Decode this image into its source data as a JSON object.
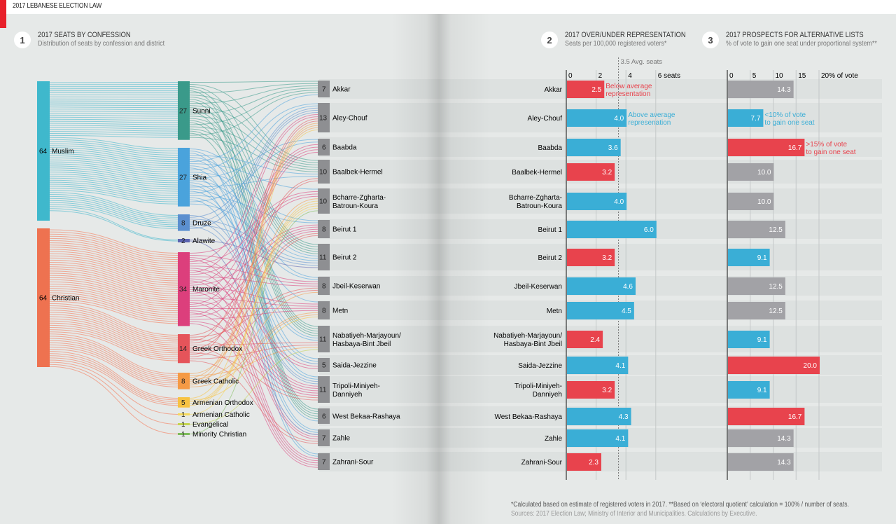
{
  "header": {
    "title": "2017 LEBANESE ELECTION LAW"
  },
  "sections": [
    {
      "num": "1",
      "title": "2017 SEATS BY CONFESSION",
      "subtitle": "Distribution of seats by confession and district"
    },
    {
      "num": "2",
      "title": "2017 OVER/UNDER REPRESENTATION",
      "subtitle": "Seats per 100,000 registered voters*"
    },
    {
      "num": "3",
      "title": "2017 PROSPECTS FOR ALTERNATIVE LISTS",
      "subtitle": "% of vote to gain one seat under proportional system**"
    }
  ],
  "colors": {
    "red": "#e8434d",
    "blue": "#3aaed6",
    "grey": "#a2a2a6",
    "band": "#dde1e0"
  },
  "chart_data": [
    {
      "type": "sankey",
      "title": "2017 SEATS BY CONFESSION",
      "religions": [
        {
          "name": "Muslim",
          "value": 64,
          "color": "#3fb8cc"
        },
        {
          "name": "Christian",
          "value": 64,
          "color": "#ee7250"
        }
      ],
      "confessions": [
        {
          "name": "Sunni",
          "value": 27,
          "color": "#3a9a8a",
          "group": "Muslim"
        },
        {
          "name": "Shia",
          "value": 27,
          "color": "#4aa3dc",
          "group": "Muslim"
        },
        {
          "name": "Druze",
          "value": 8,
          "color": "#5b8fcf",
          "group": "Muslim"
        },
        {
          "name": "Alawite",
          "value": 2,
          "color": "#5a63b0",
          "group": "Muslim"
        },
        {
          "name": "Maronite",
          "value": 34,
          "color": "#dc3f7c",
          "group": "Christian"
        },
        {
          "name": "Greek Orthodox",
          "value": 14,
          "color": "#e5545a",
          "group": "Christian"
        },
        {
          "name": "Greek Catholic",
          "value": 8,
          "color": "#f59a45",
          "group": "Christian"
        },
        {
          "name": "Armenian Orthodox",
          "value": 5,
          "color": "#f7c242",
          "group": "Christian"
        },
        {
          "name": "Armenian Catholic",
          "value": 1,
          "color": "#f5d95a",
          "group": "Christian"
        },
        {
          "name": "Evangelical",
          "value": 1,
          "color": "#c3d44e",
          "group": "Christian"
        },
        {
          "name": "Minority Christian",
          "value": 1,
          "color": "#7dbb5a",
          "group": "Christian"
        }
      ],
      "districts": [
        {
          "name": "Akkar",
          "lines": [
            "Akkar"
          ],
          "value": 7
        },
        {
          "name": "Aley-Chouf",
          "lines": [
            "Aley-Chouf"
          ],
          "value": 13
        },
        {
          "name": "Baabda",
          "lines": [
            "Baabda"
          ],
          "value": 6
        },
        {
          "name": "Baalbek-Hermel",
          "lines": [
            "Baalbek-Hermel"
          ],
          "value": 10
        },
        {
          "name": "Bcharre-Zgharta-Batroun-Koura",
          "lines": [
            "Bcharre-Zgharta-",
            "Batroun-Koura"
          ],
          "value": 10
        },
        {
          "name": "Beirut 1",
          "lines": [
            "Beirut 1"
          ],
          "value": 8
        },
        {
          "name": "Beirut 2",
          "lines": [
            "Beirut 2"
          ],
          "value": 11
        },
        {
          "name": "Jbeil-Keserwan",
          "lines": [
            "Jbeil-Keserwan"
          ],
          "value": 8
        },
        {
          "name": "Metn",
          "lines": [
            "Metn"
          ],
          "value": 8
        },
        {
          "name": "Nabatiyeh-Marjayoun/Hasbaya-Bint Jbeil",
          "lines": [
            "Nabatiyeh-Marjayoun/",
            "Hasbaya-Bint Jbeil"
          ],
          "value": 11
        },
        {
          "name": "Saida-Jezzine",
          "lines": [
            "Saida-Jezzine"
          ],
          "value": 5
        },
        {
          "name": "Tripoli-Miniyeh-Danniyeh",
          "lines": [
            "Tripoli-Miniyeh-",
            "Danniyeh"
          ],
          "value": 11
        },
        {
          "name": "West Bekaa-Rashaya",
          "lines": [
            "West Bekaa-Rashaya"
          ],
          "value": 6
        },
        {
          "name": "Zahle",
          "lines": [
            "Zahle"
          ],
          "value": 7
        },
        {
          "name": "Zahrani-Sour",
          "lines": [
            "Zahrani-Sour"
          ],
          "value": 7
        }
      ]
    },
    {
      "type": "bar",
      "orientation": "horizontal",
      "title": "2017 OVER/UNDER REPRESENTATION",
      "subtitle": "Seats per 100,000 registered voters*",
      "categories": [
        "Akkar",
        "Aley-Chouf",
        "Baabda",
        "Baalbek-Hermel",
        "Bcharre-Zgharta-Batroun-Koura",
        "Beirut 1",
        "Beirut 2",
        "Jbeil-Keserwan",
        "Metn",
        "Nabatiyeh-Marjayoun/Hasbaya-Bint Jbeil",
        "Saida-Jezzine",
        "Tripoli-Miniyeh-Danniyeh",
        "West Bekaa-Rashaya",
        "Zahle",
        "Zahrani-Sour"
      ],
      "category_lines": [
        [
          "Akkar"
        ],
        [
          "Aley-Chouf"
        ],
        [
          "Baabda"
        ],
        [
          "Baalbek-Hermel"
        ],
        [
          "Bcharre-Zgharta-",
          "Batroun-Koura"
        ],
        [
          "Beirut 1"
        ],
        [
          "Beirut 2"
        ],
        [
          "Jbeil-Keserwan"
        ],
        [
          "Metn"
        ],
        [
          "Nabatiyeh-Marjayoun/",
          "Hasbaya-Bint Jbeil"
        ],
        [
          "Saida-Jezzine"
        ],
        [
          "Tripoli-Miniyeh-",
          "Danniyeh"
        ],
        [
          "West Bekaa-Rashaya"
        ],
        [
          "Zahle"
        ],
        [
          "Zahrani-Sour"
        ]
      ],
      "values": [
        2.5,
        4.0,
        3.6,
        3.2,
        4.0,
        6.0,
        3.2,
        4.6,
        4.5,
        2.4,
        4.1,
        3.2,
        4.3,
        4.1,
        2.3
      ],
      "value_labels": [
        "2.5",
        "4.0",
        "3.6",
        "3.2",
        "4.0",
        "6.0",
        "3.2",
        "4.6",
        "4.5",
        "2.4",
        "4.1",
        "3.2",
        "4.3",
        "4.1",
        "2.3"
      ],
      "status": [
        "below",
        "above",
        "above",
        "below",
        "above",
        "above",
        "below",
        "above",
        "above",
        "below",
        "above",
        "below",
        "above",
        "above",
        "below"
      ],
      "xlim": [
        0,
        7.5
      ],
      "ticks": [
        0,
        2,
        4,
        6
      ],
      "tick_labels": [
        "0",
        "2",
        "4",
        "6 seats"
      ],
      "average": {
        "value": 3.5,
        "label": "3.5 Avg. seats"
      },
      "annotations": [
        {
          "row": 0,
          "lines": [
            "Below average",
            "representation"
          ],
          "color": "red"
        },
        {
          "row": 1,
          "lines": [
            "Above average",
            "represenation"
          ],
          "color": "blue"
        }
      ]
    },
    {
      "type": "bar",
      "orientation": "horizontal",
      "title": "2017 PROSPECTS FOR ALTERNATIVE LISTS",
      "subtitle": "% of vote to gain one seat under proportional system**",
      "categories": [
        "Akkar",
        "Aley-Chouf",
        "Baabda",
        "Baalbek-Hermel",
        "Bcharre-Zgharta-Batroun-Koura",
        "Beirut 1",
        "Beirut 2",
        "Jbeil-Keserwan",
        "Metn",
        "Nabatiyeh-Marjayoun/Hasbaya-Bint Jbeil",
        "Saida-Jezzine",
        "Tripoli-Miniyeh-Danniyeh",
        "West Bekaa-Rashaya",
        "Zahle",
        "Zahrani-Sour"
      ],
      "values": [
        14.3,
        7.7,
        16.7,
        10.0,
        10.0,
        12.5,
        9.1,
        12.5,
        12.5,
        9.1,
        20.0,
        9.1,
        16.7,
        14.3,
        14.3
      ],
      "value_labels": [
        "14.3",
        "7.7",
        "16.7",
        "10.0",
        "10.0",
        "12.5",
        "9.1",
        "12.5",
        "12.5",
        "9.1",
        "20.0",
        "9.1",
        "16.7",
        "14.3",
        "14.3"
      ],
      "status": [
        "mid",
        "low",
        "high",
        "mid",
        "mid",
        "mid",
        "low",
        "mid",
        "mid",
        "low",
        "high",
        "low",
        "high",
        "mid",
        "mid"
      ],
      "xlim": [
        0,
        33
      ],
      "ticks": [
        0,
        5,
        10,
        15,
        20
      ],
      "tick_labels": [
        "0",
        "5",
        "10",
        "15",
        "20% of vote"
      ],
      "annotations": [
        {
          "row": 1,
          "lines": [
            "<10% of vote",
            "to gain one seat"
          ],
          "color": "blue"
        },
        {
          "row": 2,
          "lines": [
            ">15% of vote",
            "to gain one seat"
          ],
          "color": "red"
        }
      ]
    }
  ],
  "footnotes": {
    "note": "*Calculated based on estimate of registered voters in 2017. **Based on ‘electoral quotient’ calculation = 100% / number of seats.",
    "sources": "Sources: 2017 Election Law; Ministry of Interior and Municipalities. Calculations by Executive."
  }
}
